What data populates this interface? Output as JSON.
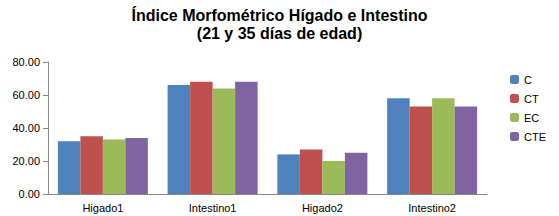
{
  "chart_data": {
    "type": "bar",
    "title": "Índice Morfométrico Hígado e Intestino",
    "subtitle": "(21 y 35 días de edad)",
    "categories": [
      "Higado1",
      "Intestino1",
      "Higado2",
      "Intestino2"
    ],
    "series": [
      {
        "name": "C",
        "color": "#4f81bd",
        "values": [
          32,
          66,
          24,
          58
        ]
      },
      {
        "name": "CT",
        "color": "#c0504d",
        "values": [
          35,
          68,
          27,
          53
        ]
      },
      {
        "name": "EC",
        "color": "#9bbb59",
        "values": [
          33,
          64,
          20,
          58
        ]
      },
      {
        "name": "CTE",
        "color": "#8064a2",
        "values": [
          34,
          68,
          25,
          53
        ]
      }
    ],
    "ylim": [
      0,
      80
    ],
    "yticks": [
      {
        "value": 0,
        "label": "0.00"
      },
      {
        "value": 20,
        "label": "20.00"
      },
      {
        "value": 40,
        "label": "40.00"
      },
      {
        "value": 60,
        "label": "60.00"
      },
      {
        "value": 80,
        "label": "80.00"
      }
    ],
    "grid": false,
    "legend": "right"
  }
}
